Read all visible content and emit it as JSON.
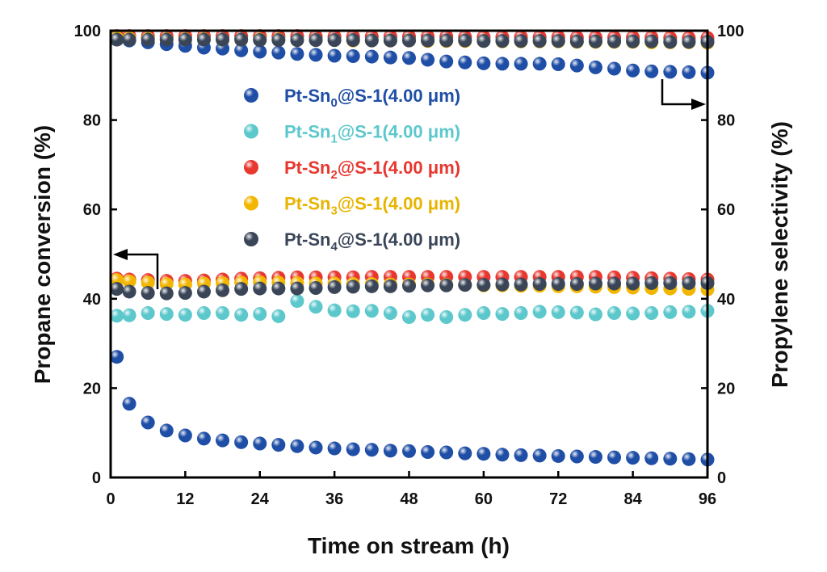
{
  "chart_data": {
    "type": "scatter",
    "title": "",
    "xlabel": "Time on stream (h)",
    "ylabel_left": "Propane conversion (%)",
    "ylabel_right": "Propylene selectivity (%)",
    "xlim": [
      0,
      96
    ],
    "ylim": [
      0,
      100
    ],
    "xticks": [
      0,
      12,
      24,
      36,
      48,
      60,
      72,
      84,
      96
    ],
    "yticks": [
      0,
      20,
      40,
      60,
      80,
      100
    ],
    "grid": false,
    "legend_placement": "upper-center",
    "x": [
      1,
      3,
      6,
      9,
      12,
      15,
      18,
      21,
      24,
      27,
      30,
      33,
      36,
      39,
      42,
      45,
      48,
      51,
      54,
      57,
      60,
      63,
      66,
      69,
      72,
      75,
      78,
      81,
      84,
      87,
      90,
      93,
      96
    ],
    "series": [
      {
        "name_prefix": "Pt-Sn",
        "name_sub": "0",
        "name_suffix": "@S-1(4.00 μm)",
        "color": "#1f4ea6",
        "legend_color": "#1f4ea6",
        "conversion": [
          27,
          16.5,
          12.3,
          10.5,
          9.4,
          8.7,
          8.3,
          7.9,
          7.6,
          7.3,
          7.0,
          6.7,
          6.5,
          6.3,
          6.2,
          6.0,
          5.9,
          5.7,
          5.6,
          5.4,
          5.3,
          5.1,
          5.0,
          4.9,
          4.8,
          4.7,
          4.6,
          4.5,
          4.4,
          4.3,
          4.2,
          4.1,
          4.0
        ],
        "selectivity": [
          98.2,
          97.8,
          97.4,
          97.0,
          96.6,
          96.2,
          96.0,
          95.6,
          95.3,
          95.1,
          94.8,
          94.6,
          94.4,
          94.3,
          94.2,
          94.0,
          93.9,
          93.5,
          93.1,
          92.9,
          92.7,
          92.6,
          92.6,
          92.6,
          92.5,
          92.2,
          91.8,
          91.5,
          91.1,
          90.9,
          90.8,
          90.7,
          90.6
        ]
      },
      {
        "name_prefix": "Pt-Sn",
        "name_sub": "1",
        "name_suffix": "@S-1(4.00 μm)",
        "color": "#5cc8cc",
        "legend_color": "#5cc8cc",
        "conversion": [
          36.2,
          36.3,
          36.8,
          36.6,
          36.4,
          36.8,
          36.8,
          36.4,
          36.6,
          36.1,
          39.5,
          38.2,
          37.4,
          37.2,
          37.3,
          36.8,
          35.9,
          36.4,
          35.9,
          36.4,
          36.8,
          36.6,
          36.8,
          37.1,
          37.0,
          36.9,
          36.5,
          36.8,
          36.7,
          36.8,
          37.0,
          37.1,
          37.3
        ],
        "selectivity": [
          98.6,
          98.6,
          98.6,
          98.6,
          98.6,
          98.6,
          98.6,
          98.6,
          98.6,
          98.6,
          98.6,
          98.5,
          98.5,
          98.5,
          98.5,
          98.4,
          98.4,
          98.4,
          98.4,
          98.4,
          98.3,
          98.3,
          98.3,
          98.3,
          98.2,
          98.2,
          98.2,
          98.2,
          98.1,
          98.1,
          98.1,
          98.0,
          98.0
        ]
      },
      {
        "name_prefix": "Pt-Sn",
        "name_sub": "2",
        "name_suffix": "@S-1(4.00 μm)",
        "color": "#e8372f",
        "legend_color": "#e8372f",
        "conversion": [
          44.5,
          44.3,
          44.2,
          44.0,
          44.0,
          44.1,
          44.3,
          44.5,
          44.6,
          44.7,
          44.8,
          44.8,
          44.8,
          44.8,
          44.9,
          44.9,
          44.9,
          44.9,
          44.9,
          44.9,
          44.9,
          44.9,
          44.9,
          44.9,
          44.9,
          44.9,
          44.9,
          44.8,
          44.7,
          44.6,
          44.5,
          44.4,
          44.3
        ],
        "selectivity": [
          98.8,
          98.8,
          98.8,
          98.8,
          98.8,
          98.8,
          98.8,
          98.8,
          98.8,
          98.8,
          98.8,
          98.7,
          98.7,
          98.7,
          98.7,
          98.7,
          98.7,
          98.7,
          98.7,
          98.6,
          98.6,
          98.6,
          98.6,
          98.6,
          98.6,
          98.5,
          98.5,
          98.5,
          98.5,
          98.5,
          98.4,
          98.4,
          98.4
        ]
      },
      {
        "name_prefix": "Pt-Sn",
        "name_sub": "3",
        "name_suffix": "@S-1(4.00 μm)",
        "color": "#f2b600",
        "legend_color": "#e8b400",
        "conversion": [
          44.2,
          43.9,
          43.6,
          43.3,
          43.2,
          43.4,
          43.5,
          43.6,
          43.7,
          43.6,
          43.5,
          43.4,
          43.4,
          43.3,
          43.3,
          43.2,
          43.2,
          43.2,
          43.1,
          43.1,
          43.0,
          43.0,
          42.9,
          42.9,
          42.8,
          42.8,
          42.7,
          42.6,
          42.5,
          42.4,
          42.3,
          42.2,
          42.1
        ],
        "selectivity": [
          98.4,
          98.3,
          98.2,
          98.1,
          98.1,
          98.1,
          98.0,
          98.0,
          98.0,
          98.0,
          97.9,
          97.9,
          97.9,
          97.8,
          97.8,
          97.8,
          97.8,
          97.7,
          97.7,
          97.7,
          97.7,
          97.6,
          97.6,
          97.6,
          97.6,
          97.5,
          97.5,
          97.5,
          97.5,
          97.4,
          97.4,
          97.4,
          97.3
        ]
      },
      {
        "name_prefix": "Pt-Sn",
        "name_sub": "4",
        "name_suffix": "@S-1(4.00 μm)",
        "color": "#3a4658",
        "legend_color": "#3a4658",
        "conversion": [
          42.2,
          41.6,
          41.3,
          41.2,
          41.3,
          41.6,
          41.9,
          42.2,
          42.3,
          42.3,
          42.3,
          42.4,
          42.6,
          42.7,
          42.8,
          42.8,
          42.9,
          43.0,
          43.0,
          43.1,
          43.1,
          43.2,
          43.2,
          43.3,
          43.3,
          43.3,
          43.4,
          43.4,
          43.4,
          43.5,
          43.5,
          43.5,
          43.5
        ],
        "selectivity": [
          98.0,
          98.0,
          98.0,
          98.0,
          98.0,
          98.0,
          98.0,
          98.0,
          97.9,
          97.9,
          97.9,
          97.9,
          97.9,
          97.9,
          97.8,
          97.8,
          97.8,
          97.8,
          97.8,
          97.8,
          97.7,
          97.7,
          97.7,
          97.7,
          97.7,
          97.6,
          97.6,
          97.6,
          97.6,
          97.6,
          97.5,
          97.5,
          97.5
        ]
      }
    ]
  }
}
